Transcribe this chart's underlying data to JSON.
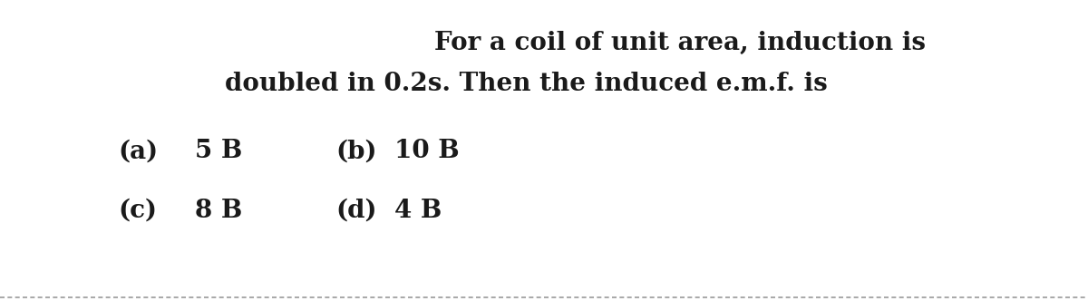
{
  "line1": "For a coil of unit area, induction is",
  "line2": "doubled in 0.2s. Then the induced e.m.f. is",
  "option_a_label": "(a)",
  "option_a_value": "5 B",
  "option_b_label": "(b)",
  "option_b_value": "10 B",
  "option_c_label": "(c)",
  "option_c_value": "8 B",
  "option_d_label": "(d)",
  "option_d_value": "4 B",
  "bg_color": "#ffffff",
  "text_color": "#1a1a1a",
  "title_fontsize": 20,
  "option_fontsize": 20,
  "bottom_line_color": "#999999"
}
